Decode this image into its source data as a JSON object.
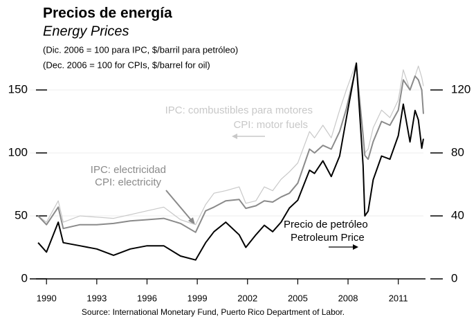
{
  "chart_data": {
    "type": "line",
    "title": "Precios de energía",
    "subtitle": "Energy Prices",
    "notes": [
      "(Dic. 2006 = 100 para IPC, $/barril para petróleo)",
      "(Dec. 2006 = 100 for CPIs, $/barrel for oil)"
    ],
    "source": "Source: International Monetary Fund, Puerto Rico Department of Labor.",
    "x": [
      1989.5,
      1990,
      1990.7,
      1991,
      1992,
      1993,
      1994,
      1995,
      1996,
      1997,
      1998,
      1998.9,
      1999.5,
      2000,
      2000.7,
      2001.5,
      2001.9,
      2002.5,
      2003,
      2003.5,
      2004,
      2004.5,
      2005,
      2005.7,
      2006,
      2006.5,
      2007,
      2007.5,
      2007.9,
      2008.5,
      2008.9,
      2009,
      2009.2,
      2009.5,
      2010,
      2010.5,
      2011,
      2011.3,
      2011.7,
      2012,
      2012.2,
      2012.4,
      2012.5
    ],
    "series": [
      {
        "name": "IPC: combustibles para motores",
        "name_en": "CPI: motor fuels",
        "color": "#c8c8c8",
        "width": 1.2,
        "values": [
          50,
          45,
          62,
          45,
          50,
          49,
          48,
          51,
          54,
          57,
          47,
          43,
          59,
          68,
          70,
          73,
          60,
          62,
          73,
          70,
          79,
          85,
          92,
          117,
          112,
          122,
          112,
          134,
          150,
          172,
          112,
          100,
          103,
          120,
          134,
          128,
          142,
          166,
          150,
          161,
          169,
          160,
          153
        ]
      },
      {
        "name": "IPC: electricidad",
        "name_en": "CPI: electricity",
        "color": "#8a8a8a",
        "width": 2,
        "values": [
          50,
          43,
          57,
          40,
          43,
          43,
          44,
          46,
          47,
          48,
          44,
          37,
          54,
          57,
          62,
          63,
          56,
          58,
          62,
          61,
          65,
          68,
          76,
          103,
          100,
          106,
          103,
          117,
          135,
          169,
          114,
          98,
          95,
          109,
          125,
          122,
          134,
          158,
          150,
          161,
          158,
          150,
          131
        ]
      },
      {
        "name": "Precio de petróleo",
        "name_en": "Petroleum Price",
        "color": "#000000",
        "width": 2,
        "axis": "y2",
        "values": [
          23,
          17,
          36,
          23,
          21,
          19,
          15,
          19,
          21,
          21,
          14.5,
          12,
          23,
          30,
          36,
          28,
          20,
          28,
          34,
          30,
          36,
          45,
          50,
          69,
          67,
          75,
          65,
          78,
          102,
          137,
          72,
          40,
          43,
          63,
          78,
          76,
          91,
          111,
          87,
          107,
          101,
          83,
          89
        ]
      }
    ],
    "xlim": [
      1989,
      2012.5
    ],
    "xticks": [
      1990,
      1993,
      1996,
      1999,
      2002,
      2005,
      2008,
      2011
    ],
    "ylim": [
      0,
      175
    ],
    "yticks": [
      0,
      50,
      100,
      150
    ],
    "y2lim": [
      0,
      140
    ],
    "y2ticks": [
      0,
      40,
      80,
      120
    ],
    "grid": true
  }
}
